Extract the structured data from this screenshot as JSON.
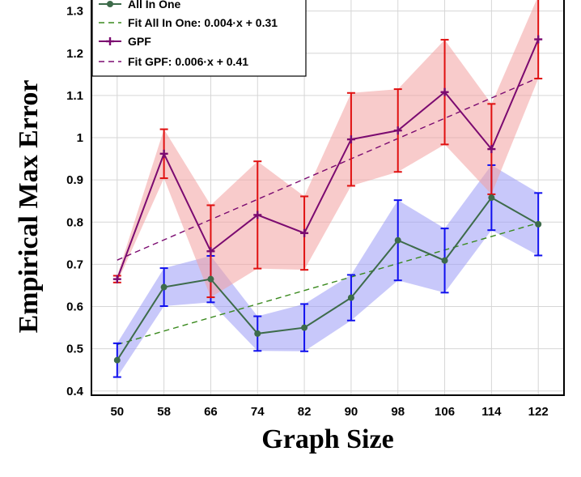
{
  "chart_data": {
    "type": "line",
    "xlabel": "Graph Size",
    "ylabel": "Empirical Max Error",
    "x": [
      50,
      58,
      66,
      74,
      82,
      90,
      98,
      106,
      114,
      122
    ],
    "x_tick_labels": [
      "50",
      "58",
      "66",
      "74",
      "82",
      "90",
      "98",
      "106",
      "114",
      "122"
    ],
    "y_ticks": [
      0.4,
      0.5,
      0.6,
      0.7,
      0.8,
      0.9,
      1.0,
      1.1,
      1.2,
      1.3
    ],
    "y_tick_labels": [
      "0.4",
      "0.5",
      "0.6",
      "0.7",
      "0.8",
      "0.9",
      "1",
      "1.1",
      "1.2",
      "1.3"
    ],
    "xlim": [
      45.6,
      126.4
    ],
    "ylim": [
      0.39,
      1.33
    ],
    "grid": true,
    "legend_position": "top-left",
    "series": [
      {
        "name": "All In One",
        "color": "#3d6b4a",
        "error_color": "#1010ee",
        "band_color": "#9a9af5",
        "values": [
          0.473,
          0.646,
          0.665,
          0.536,
          0.55,
          0.621,
          0.757,
          0.709,
          0.858,
          0.795
        ],
        "lower": [
          0.433,
          0.601,
          0.61,
          0.495,
          0.494,
          0.567,
          0.662,
          0.633,
          0.781,
          0.721
        ],
        "upper": [
          0.513,
          0.691,
          0.72,
          0.577,
          0.606,
          0.675,
          0.852,
          0.785,
          0.935,
          0.869
        ]
      },
      {
        "name": "GPF",
        "color": "#7b0a70",
        "error_color": "#e01010",
        "band_color": "#f3a0a0",
        "values": [
          0.665,
          0.962,
          0.731,
          0.817,
          0.774,
          0.996,
          1.017,
          1.108,
          0.973,
          1.233
        ],
        "lower": [
          0.657,
          0.904,
          0.622,
          0.69,
          0.687,
          0.886,
          0.919,
          0.984,
          0.866,
          1.14
        ],
        "upper": [
          0.673,
          1.02,
          0.84,
          0.944,
          0.861,
          1.106,
          1.115,
          1.232,
          1.08,
          1.336
        ]
      }
    ],
    "fits": [
      {
        "name": "Fit All In One: 0.004·x + 0.31",
        "slope": 0.004,
        "intercept": 0.31,
        "color": "#3a8a1e"
      },
      {
        "name": "Fit GPF: 0.006·x + 0.41",
        "slope": 0.006,
        "intercept": 0.41,
        "color": "#7b0a70"
      }
    ],
    "legend": [
      "All In One",
      "Fit All In One: 0.004·x + 0.31",
      "GPF",
      "Fit GPF: 0.006·x + 0.41"
    ]
  }
}
